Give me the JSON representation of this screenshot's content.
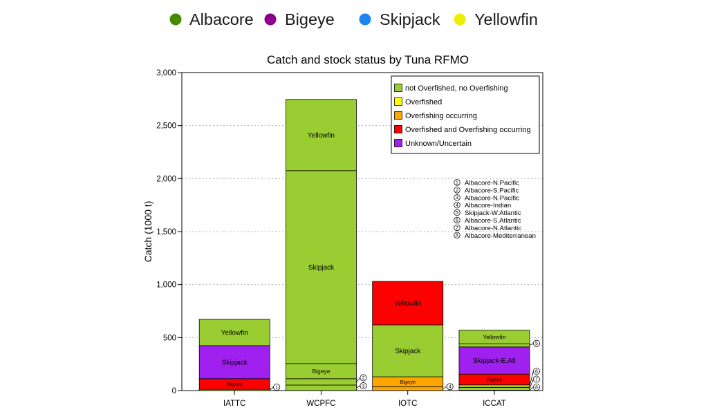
{
  "species_legend": [
    {
      "label": "Albacore",
      "color": "#458B00"
    },
    {
      "label": "Bigeye",
      "color": "#8B008B"
    },
    {
      "label": "Skipjack",
      "color": "#1C86EE"
    },
    {
      "label": "Yellowfin",
      "color": "#EEEE00"
    }
  ],
  "chart_data": {
    "type": "bar",
    "stacked": true,
    "title": "Catch and stock status by Tuna RFMO",
    "ylabel": "Catch (1000 t)",
    "ylim": [
      0,
      3000
    ],
    "yticks": [
      0,
      500,
      1000,
      1500,
      2000,
      2500,
      3000
    ],
    "ytick_labels": [
      "0",
      "500",
      "1,000",
      "1,500",
      "2,000",
      "2,500",
      "3,000"
    ],
    "grid": true,
    "categories": [
      "IATTC",
      "WCPFC",
      "IOTC",
      "ICCAT"
    ],
    "bars": [
      {
        "segments": [
          {
            "marker": "1",
            "value": 12,
            "color": "#9ACD32"
          },
          {
            "label": "Bigeye",
            "value": 100,
            "color": "#FF0000"
          },
          {
            "label": "Skipjack",
            "value": 312,
            "color": "#A020F0"
          },
          {
            "label": "Yellowfin",
            "value": 248,
            "color": "#9ACD32"
          }
        ]
      },
      {
        "segments": [
          {
            "marker": "3",
            "value": 52,
            "color": "#9ACD32"
          },
          {
            "marker": "2",
            "value": 60,
            "color": "#9ACD32"
          },
          {
            "label": "Bigeye",
            "value": 143,
            "color": "#9ACD32"
          },
          {
            "label": "Skipjack",
            "value": 1820,
            "color": "#9ACD32"
          },
          {
            "label": "Yellowfin",
            "value": 672,
            "color": "#9ACD32"
          }
        ]
      },
      {
        "segments": [
          {
            "marker": "4",
            "value": 35,
            "color": "#FFA500"
          },
          {
            "label": "Bigeye",
            "value": 95,
            "color": "#FFA500"
          },
          {
            "label": "Skipjack",
            "value": 490,
            "color": "#9ACD32"
          },
          {
            "label": "Yellowfin",
            "value": 410,
            "color": "#FF0000"
          }
        ]
      },
      {
        "segments": [
          {
            "marker": "8",
            "value": 4,
            "color": "#9ACD32"
          },
          {
            "marker": "7",
            "value": 26,
            "color": "#9ACD32"
          },
          {
            "marker": "6",
            "value": 24,
            "color": "#9ACD32"
          },
          {
            "label": "Bigeye",
            "value": 101,
            "color": "#FF0000"
          },
          {
            "label": "Skipjack-E.Atl",
            "value": 257,
            "color": "#A020F0"
          },
          {
            "marker": "5",
            "value": 28,
            "color": "#9ACD32"
          },
          {
            "label": "Yellowfin",
            "value": 130,
            "color": "#9ACD32"
          }
        ]
      }
    ],
    "legend": {
      "position": "top-right",
      "entries": [
        {
          "label": "not Overfished, no Overfishing",
          "color": "#9ACD32"
        },
        {
          "label": "Overfished",
          "color": "#FFFF00"
        },
        {
          "label": "Overfishing occurring",
          "color": "#FFA500"
        },
        {
          "label": "Overfished and Overfishing occurring",
          "color": "#FF0000"
        },
        {
          "label": "Unknown/Uncertain",
          "color": "#A020F0"
        }
      ]
    },
    "marker_key": [
      {
        "marker": "1",
        "label": "Albacore-N.Pacific"
      },
      {
        "marker": "2",
        "label": "Albacore-S.Pacific"
      },
      {
        "marker": "3",
        "label": "Albacore-N.Pacific"
      },
      {
        "marker": "4",
        "label": "Albacore-Indian"
      },
      {
        "marker": "5",
        "label": "Skipjack-W.Atlantic"
      },
      {
        "marker": "6",
        "label": "Albacore-S.Atlantic"
      },
      {
        "marker": "7",
        "label": "Albacore-N.Atlantic"
      },
      {
        "marker": "8",
        "label": "Albacore-Mediterranean"
      }
    ]
  }
}
